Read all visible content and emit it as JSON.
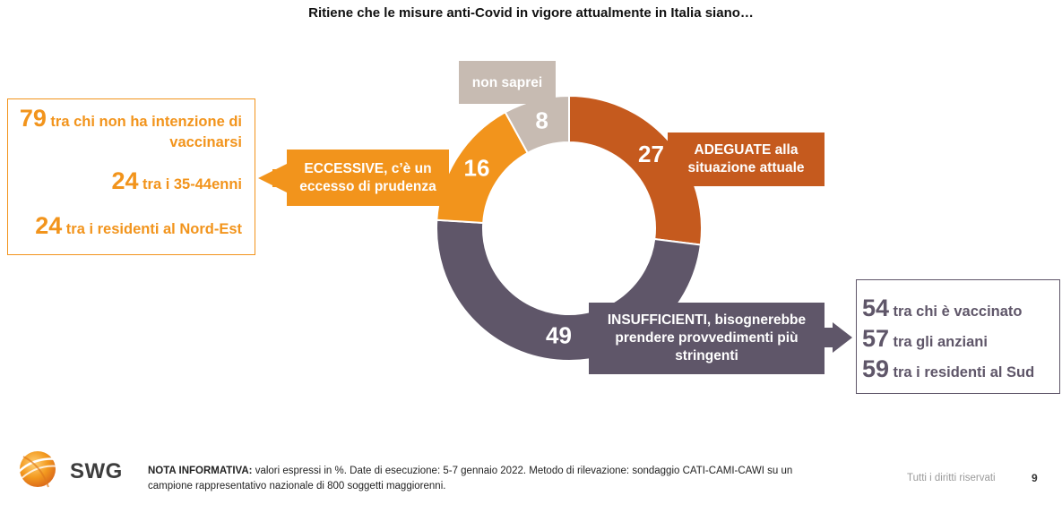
{
  "title": "Ritiene che le misure anti-Covid in vigore attualmente in Italia siano…",
  "chart_data": {
    "type": "pie",
    "style": "donut",
    "title": "Ritiene che le misure anti-Covid in vigore attualmente in Italia siano…",
    "unit": "%",
    "categories": [
      "ADEGUATE alla situazione attuale",
      "INSUFFICIENTI, bisognerebbe prendere provvedimenti più stringenti",
      "ECCESSIVE, c’è un eccesso di prudenza",
      "non saprei"
    ],
    "values": [
      27,
      49,
      16,
      8
    ],
    "colors": [
      "#C55A1E",
      "#5F5669",
      "#F2941C",
      "#C7BBB2"
    ]
  },
  "callouts": {
    "adeguate": "ADEGUATE alla situazione attuale",
    "eccessive": "ECCESSIVE, c’è un eccesso di prudenza",
    "insufficienti": "INSUFFICIENTI, bisognerebbe prendere provvedimenti più stringenti",
    "non_saprei": "non saprei"
  },
  "eccessive_breakdown": [
    {
      "value": "79",
      "text": "tra chi non ha intenzione di vaccinarsi"
    },
    {
      "value": "24",
      "text": "tra i 35-44enni"
    },
    {
      "value": "24",
      "text": "tra i residenti al Nord-Est"
    }
  ],
  "insufficienti_breakdown": [
    {
      "value": "54",
      "text": "tra chi è vaccinato"
    },
    {
      "value": "57",
      "text": "tra gli anziani"
    },
    {
      "value": "59",
      "text": "tra i residenti al Sud"
    }
  ],
  "footer": {
    "logo_text": "SWG",
    "note_label": "NOTA INFORMATIVA:",
    "note_text": "valori espressi in %. Date di esecuzione: 5-7 gennaio 2022. Metodo di rilevazione: sondaggio CATI-CAMI-CAWI su un campione rappresentativo nazionale di 800 soggetti maggiorenni.",
    "rights": "Tutti i diritti riservati",
    "page_number": "9"
  }
}
